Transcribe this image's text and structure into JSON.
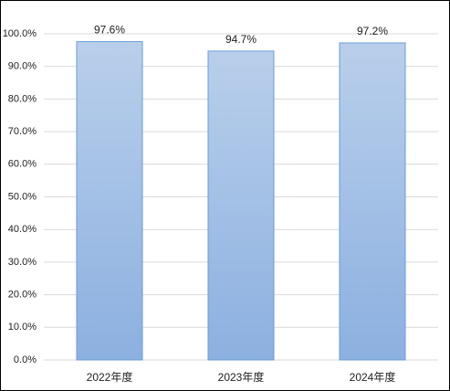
{
  "chart_data": {
    "type": "bar",
    "categories": [
      "2022年度",
      "2023年度",
      "2024年度"
    ],
    "values": [
      97.6,
      94.7,
      97.2
    ],
    "value_labels": [
      "97.6%",
      "94.7%",
      "97.2%"
    ],
    "color": "#6b9bd6",
    "ylim": [
      0,
      100
    ],
    "yticks": [
      {
        "value": 0,
        "label": "0.0%"
      },
      {
        "value": 10,
        "label": "10.0%"
      },
      {
        "value": 20,
        "label": "20.0%"
      },
      {
        "value": 30,
        "label": "30.0%"
      },
      {
        "value": 40,
        "label": "40.0%"
      },
      {
        "value": 50,
        "label": "50.0%"
      },
      {
        "value": 60,
        "label": "60.0%"
      },
      {
        "value": 70,
        "label": "70.0%"
      },
      {
        "value": 80,
        "label": "80.0%"
      },
      {
        "value": 90,
        "label": "90.0%"
      },
      {
        "value": 100,
        "label": "100.0%"
      }
    ],
    "grid": true
  }
}
